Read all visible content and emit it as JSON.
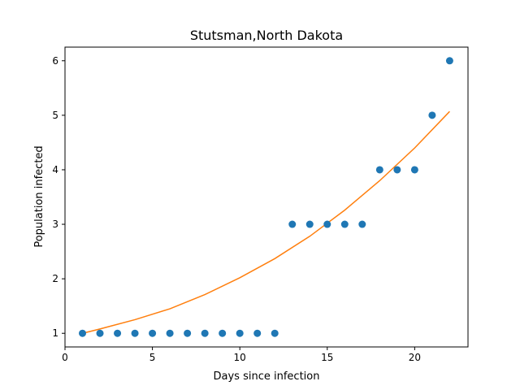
{
  "chart_data": {
    "type": "scatter",
    "title": "Stutsman,North Dakota",
    "xlabel": "Days since infection",
    "ylabel": "Population infected",
    "xlim": [
      0,
      23.05
    ],
    "ylim": [
      0.75,
      6.25
    ],
    "xticks": [
      0,
      5,
      10,
      15,
      20
    ],
    "yticks": [
      1,
      2,
      3,
      4,
      5,
      6
    ],
    "grid": false,
    "series": [
      {
        "kind": "scatter",
        "color": "#1f77b4",
        "x": [
          1,
          2,
          3,
          4,
          5,
          6,
          7,
          8,
          9,
          10,
          11,
          12,
          13,
          14,
          15,
          16,
          17,
          18,
          19,
          20,
          21,
          22
        ],
        "y": [
          1,
          1,
          1,
          1,
          1,
          1,
          1,
          1,
          1,
          1,
          1,
          1,
          3,
          3,
          3,
          3,
          3,
          4,
          4,
          4,
          5,
          6
        ]
      },
      {
        "kind": "line",
        "color": "#ff7f0e",
        "x": [
          1,
          2,
          4,
          6,
          8,
          10,
          12,
          14,
          16,
          18,
          20,
          22
        ],
        "y": [
          1.0,
          1.08,
          1.25,
          1.45,
          1.71,
          2.02,
          2.37,
          2.78,
          3.26,
          3.8,
          4.4,
          5.07
        ]
      }
    ]
  }
}
